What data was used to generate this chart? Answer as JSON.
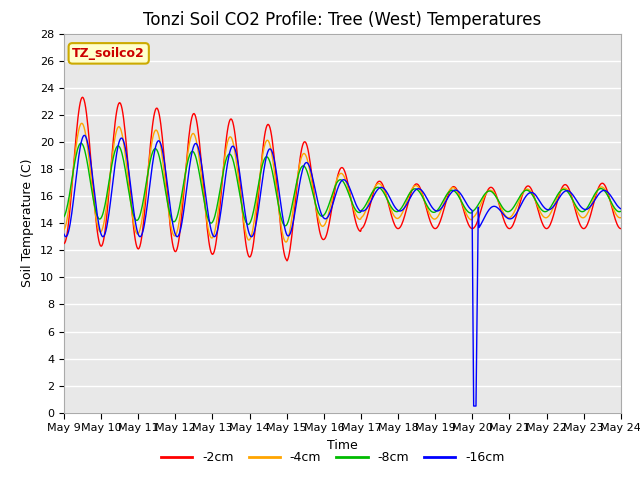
{
  "title": "Tonzi Soil CO2 Profile: Tree (West) Temperatures",
  "xlabel": "Time",
  "ylabel": "Soil Temperature (C)",
  "ylim": [
    0,
    28
  ],
  "yticks": [
    0,
    2,
    4,
    6,
    8,
    10,
    12,
    14,
    16,
    18,
    20,
    22,
    24,
    26,
    28
  ],
  "xtick_labels": [
    "May 9",
    "May 10",
    "May 11",
    "May 12",
    "May 13",
    "May 14",
    "May 15",
    "May 16",
    "May 17",
    "May 18",
    "May 19",
    "May 20",
    "May 21",
    "May 22",
    "May 23",
    "May 24"
  ],
  "legend_labels": [
    "-2cm",
    "-4cm",
    "-8cm",
    "-16cm"
  ],
  "legend_colors": [
    "#ff0000",
    "#ffa500",
    "#00bb00",
    "#0000ff"
  ],
  "line_width": 1.0,
  "annotation_text": "TZ_soilco2",
  "annotation_color": "#cc0000",
  "annotation_bg": "#ffffcc",
  "annotation_edge": "#ccaa00",
  "plot_bg": "#e8e8e8",
  "grid_color": "#ffffff",
  "title_fontsize": 12,
  "axis_fontsize": 9,
  "tick_fontsize": 8,
  "legend_fontsize": 9
}
